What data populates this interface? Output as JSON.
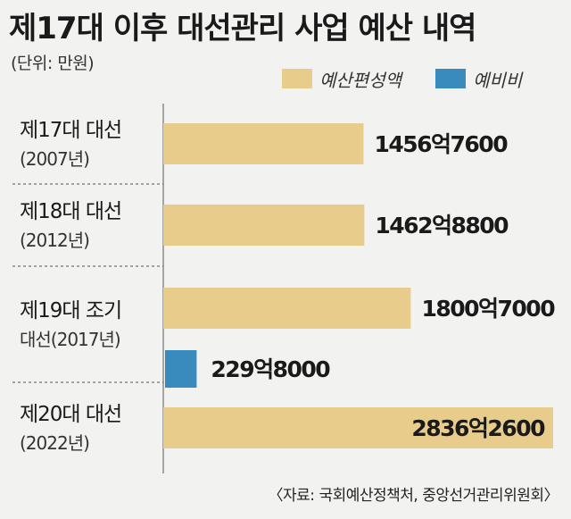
{
  "header": {
    "title": "제17대 이후 대선관리 사업 예산 내역",
    "unit": "(단위: 만원)"
  },
  "legend": [
    {
      "name": "예산편성액",
      "color": "#e8cc8c"
    },
    {
      "name": "예비비",
      "color": "#3a8bbd"
    }
  ],
  "source": "〈자료: 국회예산정책처, 중앙선거관리위원회〉",
  "chart_data": {
    "type": "bar",
    "orientation": "horizontal",
    "grid": false,
    "legend_position": "top-right",
    "categories": [
      {
        "line1": "제17대 대선",
        "line2": "(2007년)"
      },
      {
        "line1": "제18대 대선",
        "line2": "(2012년)"
      },
      {
        "line1": "제19대 조기",
        "line2": "대선(2017년)"
      },
      {
        "line1": "제20대 대선",
        "line2": "(2022년)"
      }
    ],
    "series": [
      {
        "name": "예산편성액",
        "color": "#e8cc8c",
        "values": [
          1456.76,
          1462.88,
          1800.7,
          2836.26
        ],
        "labels": [
          "1456억7600",
          "1462억8800",
          "1800억7000",
          "2836억2600"
        ]
      },
      {
        "name": "예비비",
        "color": "#3a8bbd",
        "values": [
          null,
          null,
          229.8,
          null
        ],
        "labels": [
          null,
          null,
          "229억8000",
          null
        ]
      }
    ],
    "value_unit": "억원"
  }
}
